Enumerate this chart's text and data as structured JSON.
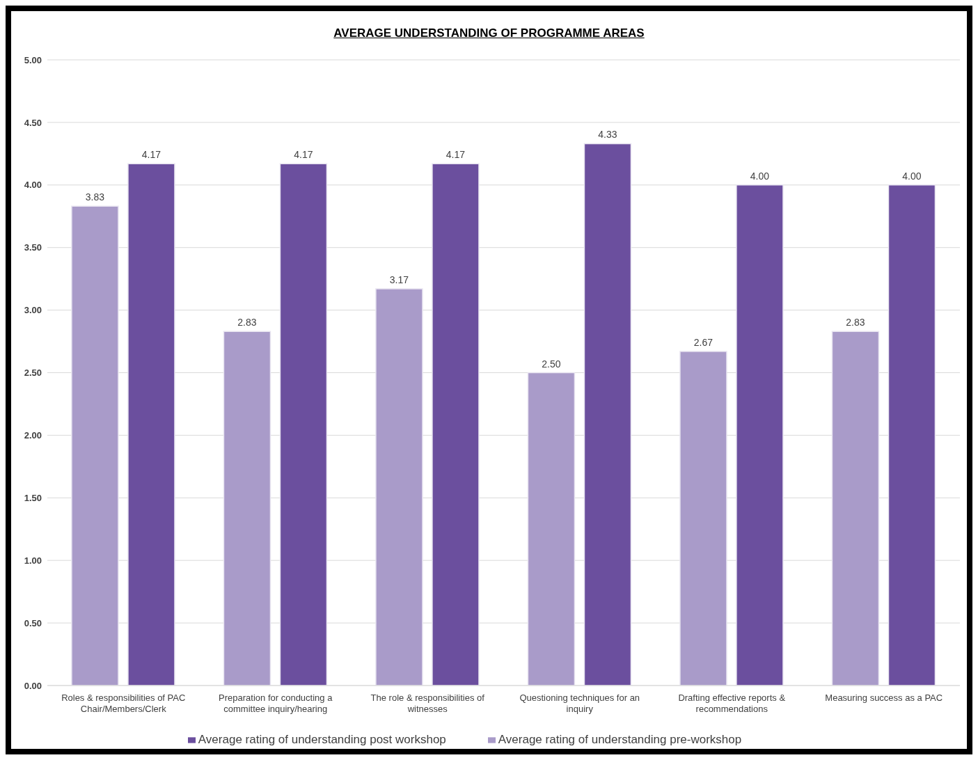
{
  "chart_data": {
    "type": "bar",
    "title": "AVERAGE UNDERSTANDING OF PROGRAMME AREAS",
    "categories": [
      "Roles & responsibilities of PAC Chair/Members/Clerk",
      "Preparation for conducting a committee inquiry/hearing",
      "The role & responsibilities of witnesses",
      "Questioning techniques for an inquiry",
      "Drafting effective reports & recommendations",
      "Measuring success as a PAC"
    ],
    "series": [
      {
        "name": "Average rating of understanding pre-workshop",
        "color": "#a99bc9",
        "values": [
          3.83,
          2.83,
          3.17,
          2.5,
          2.67,
          2.83
        ],
        "value_labels": [
          "3.83",
          "2.83",
          "3.17",
          "2.50",
          "2.67",
          "2.83"
        ]
      },
      {
        "name": "Average rating of understanding post workshop",
        "color": "#6b4f9e",
        "values": [
          4.17,
          4.17,
          4.17,
          4.33,
          4.0,
          4.0
        ],
        "value_labels": [
          "4.17",
          "4.17",
          "4.17",
          "4.33",
          "4.00",
          "4.00"
        ]
      }
    ],
    "ylim": [
      0,
      5
    ],
    "yticks": [
      {
        "value": 0,
        "label": "0.00"
      },
      {
        "value": 0.5,
        "label": "0.50"
      },
      {
        "value": 1,
        "label": "1.00"
      },
      {
        "value": 1.5,
        "label": "1.50"
      },
      {
        "value": 2,
        "label": "2.00"
      },
      {
        "value": 2.5,
        "label": "2.50"
      },
      {
        "value": 3,
        "label": "3.00"
      },
      {
        "value": 3.5,
        "label": "3.50"
      },
      {
        "value": 4,
        "label": "4.00"
      },
      {
        "value": 4.5,
        "label": "4.50"
      },
      {
        "value": 5,
        "label": "5.00"
      }
    ],
    "grid": "y",
    "legend": "bottom"
  }
}
